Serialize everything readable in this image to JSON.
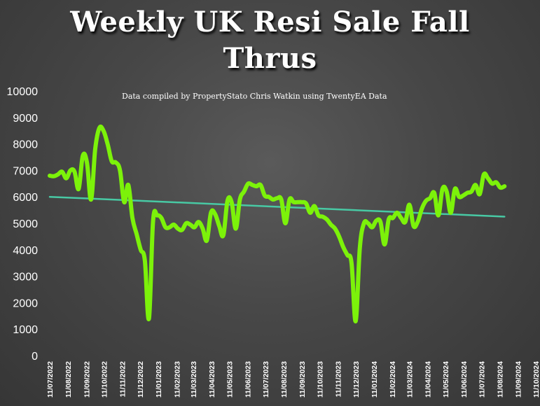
{
  "chart_data": {
    "type": "line",
    "title": [
      "Weekly UK Resi Sale Fall",
      "Thrus"
    ],
    "subtitle": "Data compiled by PropertyStato Chris Watkin using TwentyEA Data",
    "ylim": [
      0,
      10000
    ],
    "yticks": [
      "0",
      "1000",
      "2000",
      "3000",
      "4000",
      "5000",
      "6000",
      "7000",
      "8000",
      "9000",
      "10000"
    ],
    "x_ticks": [
      "11/07/2022",
      "11/08/2022",
      "11/09/2022",
      "11/10/2022",
      "11/11/2022",
      "11/12/2022",
      "11/01/2023",
      "11/02/2023",
      "11/03/2023",
      "11/04/2023",
      "11/05/2023",
      "11/06/2023",
      "11/07/2023",
      "11/08/2023",
      "11/09/2023",
      "11/10/2023",
      "11/11/2023",
      "11/12/2023",
      "11/01/2024",
      "11/02/2024",
      "11/03/2024",
      "11/04/2024",
      "11/05/2024",
      "11/06/2024",
      "11/07/2024",
      "11/08/2024",
      "11/09/2024",
      "11/10/2024"
    ],
    "grid": false,
    "series": [
      {
        "color": "#7cf20a",
        "x": [
          "2022-07-11",
          "2022-07-18",
          "2022-07-25",
          "2022-08-01",
          "2022-08-08",
          "2022-08-15",
          "2022-08-22",
          "2022-08-29",
          "2022-09-05",
          "2022-09-12",
          "2022-09-19",
          "2022-09-26",
          "2022-10-03",
          "2022-10-10",
          "2022-10-17",
          "2022-10-24",
          "2022-10-31",
          "2022-11-07",
          "2022-11-14",
          "2022-11-21",
          "2022-11-28",
          "2022-12-05",
          "2022-12-12",
          "2022-12-19",
          "2022-12-26",
          "2023-01-02",
          "2023-01-09",
          "2023-01-16",
          "2023-01-23",
          "2023-01-30",
          "2023-02-06",
          "2023-02-13",
          "2023-02-20",
          "2023-02-27",
          "2023-03-06",
          "2023-03-13",
          "2023-03-20",
          "2023-03-27",
          "2023-04-03",
          "2023-04-10",
          "2023-04-17",
          "2023-04-24",
          "2023-05-01",
          "2023-05-08",
          "2023-05-15",
          "2023-05-22",
          "2023-05-29",
          "2023-06-05",
          "2023-06-12",
          "2023-06-19",
          "2023-06-26",
          "2023-07-03",
          "2023-07-10",
          "2023-07-17",
          "2023-07-24",
          "2023-07-31",
          "2023-08-07",
          "2023-08-14",
          "2023-08-21",
          "2023-08-28",
          "2023-09-04",
          "2023-09-11",
          "2023-09-18",
          "2023-09-25",
          "2023-10-02",
          "2023-10-09",
          "2023-10-16",
          "2023-10-23",
          "2023-10-30",
          "2023-11-06",
          "2023-11-13",
          "2023-11-20",
          "2023-11-27",
          "2023-12-04",
          "2023-12-11",
          "2023-12-18",
          "2023-12-25",
          "2024-01-01",
          "2024-01-08",
          "2024-01-15",
          "2024-01-22",
          "2024-01-29",
          "2024-02-05",
          "2024-02-12",
          "2024-02-19",
          "2024-02-26",
          "2024-03-04",
          "2024-03-11",
          "2024-03-18",
          "2024-03-25",
          "2024-04-01",
          "2024-04-08",
          "2024-04-15",
          "2024-04-22",
          "2024-04-29",
          "2024-05-06",
          "2024-05-13",
          "2024-05-20",
          "2024-05-27",
          "2024-06-03",
          "2024-06-10",
          "2024-06-17",
          "2024-06-24",
          "2024-07-01",
          "2024-07-08",
          "2024-07-15",
          "2024-07-22",
          "2024-07-29",
          "2024-08-05",
          "2024-08-12",
          "2024-08-19"
        ],
        "values": [
          6800,
          6780,
          6850,
          6950,
          6700,
          7000,
          6950,
          6300,
          7550,
          7300,
          5900,
          7800,
          8600,
          8500,
          8000,
          7350,
          7300,
          7000,
          5800,
          6450,
          5200,
          4600,
          4000,
          3600,
          1400,
          5100,
          5300,
          5200,
          4850,
          4850,
          4950,
          4800,
          4750,
          5000,
          4950,
          4850,
          5050,
          4800,
          4350,
          5400,
          5350,
          4900,
          4550,
          5850,
          5800,
          4800,
          5900,
          6200,
          6500,
          6450,
          6400,
          6450,
          6050,
          6000,
          5900,
          5950,
          5900,
          5000,
          5900,
          5800,
          5800,
          5800,
          5750,
          5400,
          5650,
          5300,
          5250,
          5150,
          4950,
          4800,
          4500,
          4100,
          3800,
          3500,
          1300,
          4050,
          5000,
          5000,
          4850,
          5100,
          5050,
          4200,
          5150,
          5200,
          5400,
          5200,
          5050,
          5700,
          4900,
          5050,
          5550,
          5850,
          5950,
          6150,
          5300,
          6300,
          6200,
          5400,
          6300,
          6000,
          6050,
          6150,
          6200,
          6450,
          6100,
          6850,
          6700,
          6500,
          6550,
          6350,
          6400
        ]
      },
      {
        "color": "#48c9a4",
        "type": "trendline",
        "x": [
          "2022-07-11",
          "2024-08-19"
        ],
        "values": [
          6000,
          5250
        ]
      }
    ]
  }
}
